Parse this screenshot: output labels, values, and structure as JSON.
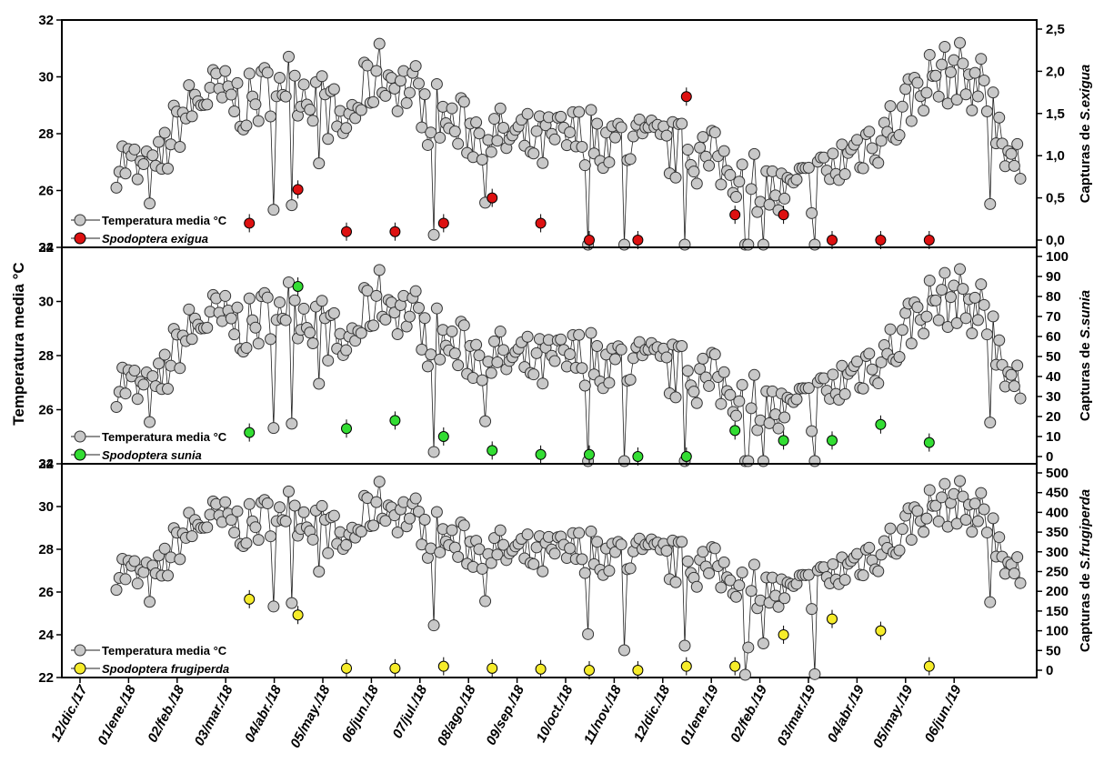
{
  "y_axis_label": "Temperatura media °C",
  "x_ticks": [
    "12/dic./17",
    "01/ene./18",
    "02/feb./18",
    "03/mar./18",
    "04/abr./18",
    "05/may./18",
    "06/jun./18",
    "07/jul./18",
    "08/ago./18",
    "09/sep./18",
    "10/oct./18",
    "11/nov./18",
    "12/dic./18",
    "01/ene./19",
    "02/feb./19",
    "03/mar./19",
    "04/abr./19",
    "05/may./19",
    "06/jun./19"
  ],
  "colors": {
    "temperature": "#c8c8c8",
    "exigua": "#dd1111",
    "sunia": "#33dd33",
    "frugiperda": "#f6ec2a"
  },
  "chart_data": [
    {
      "type": "scatter",
      "panel": "top",
      "left_axis": {
        "ticks": [
          24,
          26,
          28,
          30,
          32
        ],
        "ylim": [
          24,
          32
        ]
      },
      "right_axis": {
        "label_prefix": "Capturas de ",
        "label_species": "S.exigua",
        "ticks": [
          "0,0",
          "0,5",
          "1,0",
          "1,5",
          "2,0",
          "2,5"
        ],
        "ylim": [
          0,
          2.5
        ]
      },
      "legend": [
        {
          "label": "Temperatura media",
          "unit": "°C"
        },
        {
          "label": "Spodoptera exigua"
        }
      ],
      "series": [
        {
          "name": "Temperatura media",
          "axis": "left",
          "x_index": [
            0,
            4,
            8,
            12,
            16,
            20,
            24,
            28,
            32,
            36,
            40,
            44,
            48,
            52,
            56,
            60,
            64,
            68,
            72,
            76
          ],
          "values": [
            27.3,
            26.2,
            28.1,
            29.3,
            29.7,
            28.9,
            29.6,
            28.6,
            28.9,
            28.3,
            27.5,
            26.9,
            27.1,
            28.0,
            27.4,
            27.6,
            28.4,
            26.5,
            29.6,
            30.5
          ]
        },
        {
          "name": "Spodoptera exigua",
          "axis": "right",
          "x": [
            "03/mar./18",
            "04/abr./18",
            "05/may./18",
            "06/jun./18",
            "07/jul./18",
            "08/ago./18",
            "09/sep./18",
            "10/oct./18",
            "11/nov./18",
            "12/dic./18",
            "01/ene./19",
            "02/feb./19",
            "03/mar./19",
            "04/abr./19",
            "05/may./19"
          ],
          "values": [
            0.2,
            0.6,
            0.1,
            0.1,
            0.2,
            0.5,
            0.2,
            0.0,
            0.0,
            1.7,
            0.3,
            0.3,
            0.0,
            0.0,
            0.0
          ]
        }
      ]
    },
    {
      "type": "scatter",
      "panel": "middle",
      "left_axis": {
        "ticks": [
          24,
          26,
          28,
          30,
          32
        ],
        "ylim": [
          24,
          32
        ]
      },
      "right_axis": {
        "label_prefix": "Capturas de ",
        "label_species": "S.sunia",
        "ticks": [
          "0",
          "10",
          "20",
          "30",
          "40",
          "50",
          "60",
          "70",
          "80",
          "90",
          "100"
        ],
        "ylim": [
          0,
          100
        ]
      },
      "legend": [
        {
          "label": "Temperatura media",
          "unit": "°C"
        },
        {
          "label": "Spodoptera sunia"
        }
      ],
      "series": [
        {
          "name": "Spodoptera sunia",
          "axis": "right",
          "x": [
            "03/mar./18",
            "04/abr./18",
            "05/may./18",
            "06/jun./18",
            "07/jul./18",
            "08/ago./18",
            "09/sep./18",
            "10/oct./18",
            "11/nov./18",
            "12/dic./18",
            "01/ene./19",
            "02/feb./19",
            "03/mar./19",
            "04/abr./19",
            "05/may./19"
          ],
          "values": [
            12,
            85,
            14,
            18,
            10,
            3,
            1,
            1,
            0,
            0,
            13,
            8,
            8,
            16,
            7
          ]
        }
      ]
    },
    {
      "type": "scatter",
      "panel": "bottom",
      "left_axis": {
        "ticks": [
          22,
          24,
          26,
          28,
          30,
          32
        ],
        "ylim": [
          22,
          32
        ]
      },
      "right_axis": {
        "label_prefix": "Capturas de ",
        "label_species": "S.frugiperda",
        "ticks": [
          "0",
          "50",
          "100",
          "150",
          "200",
          "250",
          "300",
          "350",
          "400",
          "450",
          "500"
        ],
        "ylim": [
          0,
          500
        ]
      },
      "legend": [
        {
          "label": "Temperatura media",
          "unit": "°C"
        },
        {
          "label": "Spodoptera frugiperda"
        }
      ],
      "series": [
        {
          "name": "Spodoptera frugiperda",
          "axis": "right",
          "x": [
            "03/mar./18",
            "04/abr./18",
            "05/may./18",
            "06/jun./18",
            "07/jul./18",
            "08/ago./18",
            "09/sep./18",
            "10/oct./18",
            "11/nov./18",
            "12/dic./18",
            "01/ene./19",
            "02/feb./19",
            "03/mar./19",
            "04/abr./19",
            "05/may./19"
          ],
          "values": [
            180,
            140,
            5,
            5,
            10,
            5,
            3,
            0,
            0,
            10,
            10,
            90,
            130,
            100,
            10
          ]
        }
      ]
    }
  ]
}
